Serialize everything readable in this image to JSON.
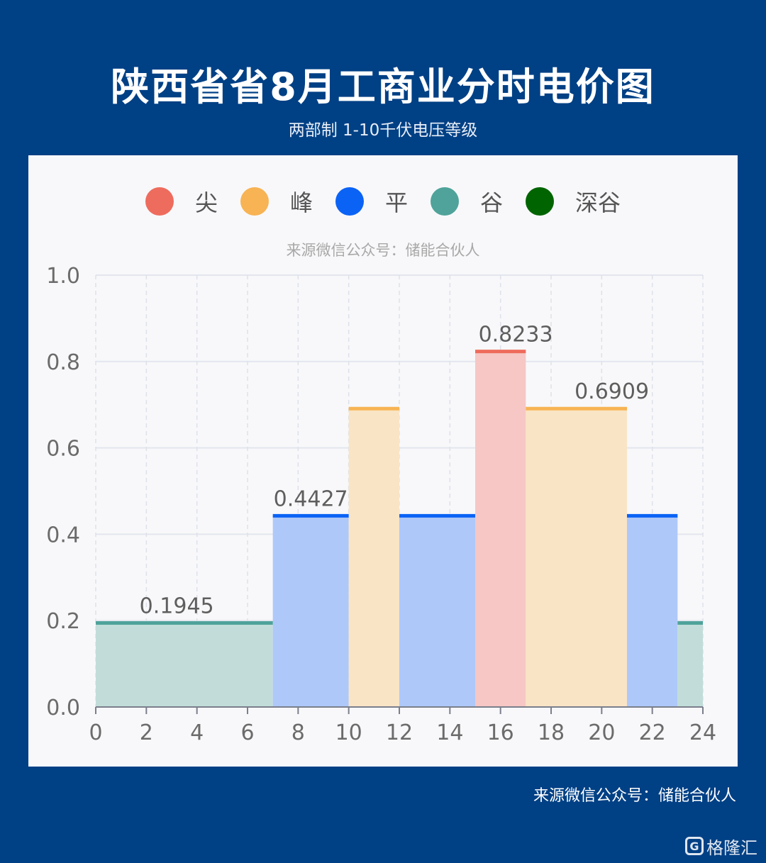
{
  "header": {
    "title": "陕西省省8月工商业分时电价图",
    "subtitle": "两部制 1-10千伏电压等级"
  },
  "source_inner": "来源微信公众号：储能合伙人",
  "source_footer": "来源微信公众号：储能合伙人",
  "logo": {
    "mark": "G",
    "text": "格隆汇"
  },
  "chart_data": {
    "type": "area",
    "legend": [
      {
        "name": "尖",
        "color": "#ee6c5d"
      },
      {
        "name": "峰",
        "color": "#f7b354"
      },
      {
        "name": "平",
        "color": "#0b63f6"
      },
      {
        "name": "谷",
        "color": "#4fa39a"
      },
      {
        "name": "深谷",
        "color": "#006400"
      }
    ],
    "xlim": [
      0,
      24
    ],
    "ylim": [
      0,
      1.0
    ],
    "x_ticks": [
      0,
      2,
      4,
      6,
      8,
      10,
      12,
      14,
      16,
      18,
      20,
      22,
      24
    ],
    "y_ticks": [
      "0.0",
      "0.2",
      "0.4",
      "0.6",
      "0.8",
      "1.0"
    ],
    "segments": [
      {
        "start": 0,
        "end": 7,
        "value": 0.1945,
        "tier": "谷"
      },
      {
        "start": 7,
        "end": 10,
        "value": 0.4427,
        "tier": "平"
      },
      {
        "start": 10,
        "end": 12,
        "value": 0.6909,
        "tier": "峰"
      },
      {
        "start": 12,
        "end": 15,
        "value": 0.4427,
        "tier": "平"
      },
      {
        "start": 15,
        "end": 17,
        "value": 0.8233,
        "tier": "尖"
      },
      {
        "start": 17,
        "end": 21,
        "value": 0.6909,
        "tier": "峰"
      },
      {
        "start": 21,
        "end": 23,
        "value": 0.4427,
        "tier": "平"
      },
      {
        "start": 23,
        "end": 24,
        "value": 0.1945,
        "tier": "谷"
      }
    ],
    "data_labels": [
      {
        "x": 3.2,
        "value": 0.1945,
        "text": "0.1945"
      },
      {
        "x": 8.5,
        "value": 0.4427,
        "text": "0.4427"
      },
      {
        "x": 16.6,
        "value": 0.8233,
        "text": "0.8233"
      },
      {
        "x": 20.4,
        "value": 0.6909,
        "text": "0.6909"
      }
    ],
    "grid": true
  }
}
